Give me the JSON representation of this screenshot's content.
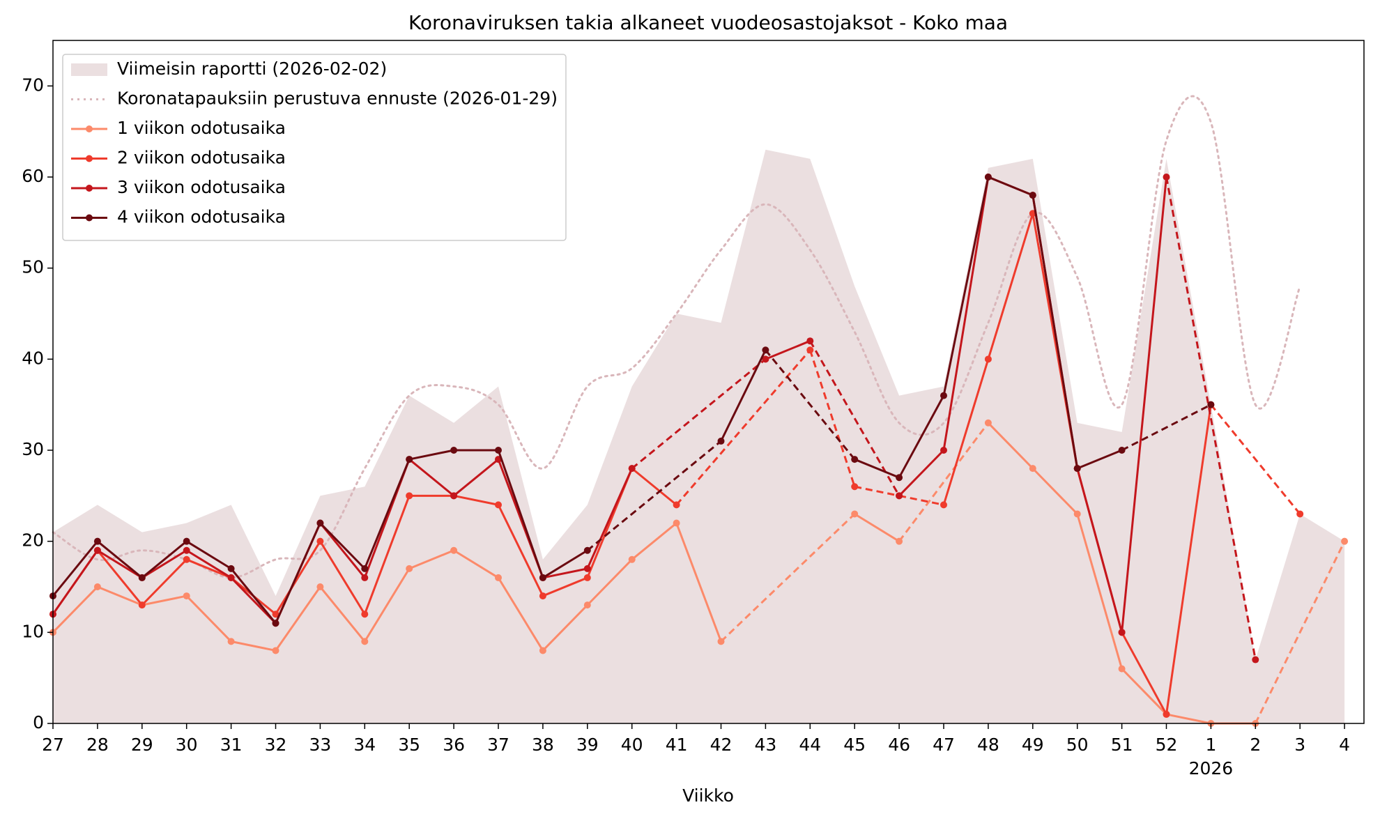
{
  "chart_data": {
    "type": "line",
    "title": "Koronaviruksen takia alkaneet vuodeosastojaksot - Koko maa",
    "xlabel": "Viikko",
    "categories": [
      "27",
      "28",
      "29",
      "30",
      "31",
      "32",
      "33",
      "34",
      "35",
      "36",
      "37",
      "38",
      "39",
      "40",
      "41",
      "42",
      "43",
      "44",
      "45",
      "46",
      "47",
      "48",
      "49",
      "50",
      "51",
      "52",
      "1",
      "2",
      "3",
      "4"
    ],
    "x_sublabels": [
      {
        "category": "1",
        "label": "2026"
      }
    ],
    "ylim": [
      0,
      75
    ],
    "yticks": [
      0,
      10,
      20,
      30,
      40,
      50,
      60,
      70
    ],
    "legend": "upper left",
    "series": [
      {
        "name": "Viimeisin raportti (2026-02-02)",
        "kind": "area",
        "color": "#ebdfe0",
        "values": [
          21,
          24,
          21,
          22,
          24,
          14,
          25,
          26,
          36,
          33,
          37,
          18,
          24,
          37,
          45,
          44,
          63,
          62,
          48,
          36,
          37,
          61,
          62,
          33,
          32,
          62,
          35,
          7,
          23,
          20
        ]
      },
      {
        "name": "Koronatapauksiin perustuva ennuste (2026-01-29)",
        "kind": "line",
        "linestyle": "dotted",
        "smooth": true,
        "color": "#d9b6ba",
        "values": [
          21,
          18,
          19,
          18,
          16,
          18,
          19,
          28,
          36,
          37,
          35,
          28,
          37,
          39,
          45,
          52,
          57,
          52,
          43,
          33,
          33,
          44,
          56,
          49,
          35,
          64,
          66,
          35,
          48,
          null
        ]
      },
      {
        "name": "1 viikon odotusaika",
        "kind": "line",
        "marker": true,
        "color": "#fc8a6a",
        "values": [
          10,
          15,
          13,
          14,
          9,
          8,
          15,
          9,
          17,
          19,
          16,
          8,
          13,
          18,
          22,
          9,
          null,
          null,
          23,
          20,
          null,
          33,
          28,
          23,
          6,
          1,
          0,
          0,
          null,
          20
        ],
        "segment_styles": [
          "solid",
          "solid",
          "solid",
          "solid",
          "solid",
          "solid",
          "solid",
          "solid",
          "solid",
          "solid",
          "solid",
          "solid",
          "solid",
          "solid",
          "solid",
          "dashed",
          "solid",
          "dashed",
          "solid",
          "solid",
          "solid",
          "solid",
          "solid",
          "solid",
          "dashed"
        ]
      },
      {
        "name": "2 viikon odotusaika",
        "kind": "line",
        "marker": true,
        "color": "#ef3b2c",
        "values": [
          12,
          19,
          13,
          18,
          16,
          12,
          20,
          12,
          25,
          25,
          24,
          14,
          16,
          28,
          24,
          null,
          null,
          41,
          26,
          25,
          24,
          40,
          56,
          28,
          10,
          1,
          35,
          null,
          23,
          null
        ],
        "segment_styles": [
          "solid",
          "solid",
          "solid",
          "solid",
          "solid",
          "solid",
          "solid",
          "solid",
          "solid",
          "solid",
          "solid",
          "solid",
          "solid",
          "solid",
          "dashed",
          "dashed",
          "dashed",
          "dashed",
          "solid",
          "solid",
          "solid",
          "solid",
          "solid",
          "solid",
          "dashed"
        ]
      },
      {
        "name": "3 viikon odotusaika",
        "kind": "line",
        "marker": true,
        "color": "#c4161c",
        "values": [
          12,
          19,
          16,
          19,
          16,
          11,
          22,
          16,
          29,
          25,
          29,
          16,
          17,
          28,
          null,
          null,
          40,
          42,
          null,
          25,
          30,
          60,
          58,
          28,
          10,
          60,
          null,
          7,
          null,
          null
        ],
        "segment_styles": [
          "solid",
          "solid",
          "solid",
          "solid",
          "solid",
          "solid",
          "solid",
          "solid",
          "solid",
          "solid",
          "solid",
          "solid",
          "solid",
          "dashed",
          "solid",
          "dashed",
          "solid",
          "solid",
          "solid",
          "solid",
          "solid",
          "solid",
          "dashed"
        ]
      },
      {
        "name": "4 viikon odotusaika",
        "kind": "line",
        "marker": true,
        "color": "#6b0a10",
        "values": [
          14,
          20,
          16,
          20,
          17,
          11,
          22,
          17,
          29,
          30,
          30,
          16,
          19,
          null,
          null,
          31,
          41,
          null,
          29,
          27,
          36,
          60,
          58,
          28,
          30,
          null,
          35,
          null,
          null,
          null
        ],
        "segment_styles": [
          "solid",
          "solid",
          "solid",
          "solid",
          "solid",
          "solid",
          "solid",
          "solid",
          "solid",
          "solid",
          "solid",
          "solid",
          "dashed",
          "solid",
          "dashed",
          "solid",
          "solid",
          "solid",
          "solid",
          "solid",
          "solid",
          "dashed"
        ]
      }
    ]
  }
}
